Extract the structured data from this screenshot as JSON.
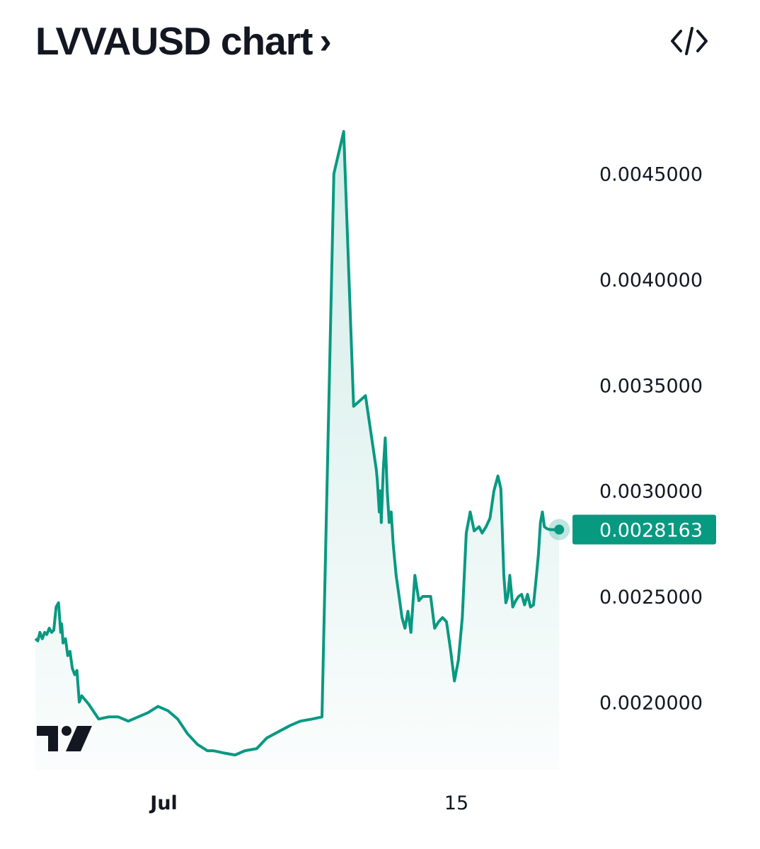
{
  "header": {
    "title": "LVVAUSD chart",
    "chevron": "›",
    "embed_icon": "code-embed-icon"
  },
  "logo": {
    "icon": "tradingview-logo-icon"
  },
  "colors": {
    "line": "#089981",
    "fill_top": "#089981",
    "last_price_bg": "#089981",
    "text": "#131722"
  },
  "chart_data": {
    "type": "area",
    "title": "LVVAUSD chart",
    "xlabel": "",
    "ylabel": "",
    "x_ticks": [
      {
        "label": "Jul",
        "x": 12.8,
        "bold": true
      },
      {
        "label": "15",
        "x": 27.6,
        "bold": false
      }
    ],
    "y_ticks": [
      0.0045,
      0.004,
      0.0035,
      0.003,
      0.0025,
      0.002
    ],
    "y_tick_labels": [
      "0.0045000",
      "0.0040000",
      "0.0035000",
      "0.0030000",
      "0.0025000",
      "0.0020000"
    ],
    "xlim": [
      6.3,
      32.9
    ],
    "ylim": [
      0.00168,
      0.00482
    ],
    "grid": false,
    "legend": "none",
    "last_price": 0.0028163,
    "last_price_label": "0.0028163",
    "x": [
      6.3,
      6.42,
      6.53,
      6.65,
      6.77,
      6.88,
      7.0,
      7.12,
      7.23,
      7.35,
      7.47,
      7.58,
      7.63,
      7.7,
      7.82,
      7.94,
      8.05,
      8.17,
      8.29,
      8.4,
      8.52,
      8.64,
      9.0,
      9.5,
      10.0,
      10.5,
      11.0,
      11.5,
      12.0,
      12.5,
      13.0,
      13.5,
      14.0,
      14.5,
      15.0,
      15.3,
      15.8,
      16.4,
      16.9,
      17.5,
      18.0,
      18.6,
      19.2,
      19.7,
      20.3,
      20.8,
      21.4,
      21.9,
      22.4,
      23.0,
      23.55,
      23.6,
      23.7,
      23.75,
      23.8,
      23.9,
      24.0,
      24.1,
      24.2,
      24.3,
      24.4,
      24.55,
      24.7,
      24.85,
      25.0,
      25.15,
      25.3,
      25.5,
      25.7,
      25.9,
      26.1,
      26.3,
      26.5,
      26.7,
      26.9,
      27.1,
      27.3,
      27.5,
      27.7,
      27.9,
      28.1,
      28.3,
      28.5,
      28.75,
      28.9,
      29.1,
      29.3,
      29.5,
      29.7,
      29.85,
      30.0,
      30.1,
      30.2,
      30.3,
      30.45,
      30.6,
      30.75,
      30.9,
      31.05,
      31.2,
      31.35,
      31.5,
      31.65,
      31.75,
      31.85,
      31.95,
      32.05,
      32.2,
      32.35,
      32.5,
      32.65,
      32.8
    ],
    "y": [
      0.0023,
      0.00229,
      0.00233,
      0.0023,
      0.00233,
      0.00232,
      0.00235,
      0.00233,
      0.00234,
      0.00245,
      0.00247,
      0.00233,
      0.00237,
      0.00228,
      0.0023,
      0.00222,
      0.00224,
      0.00216,
      0.00213,
      0.00215,
      0.002,
      0.00203,
      0.00199,
      0.00192,
      0.00193,
      0.00193,
      0.00191,
      0.00193,
      0.00195,
      0.00198,
      0.00196,
      0.00192,
      0.00185,
      0.0018,
      0.00177,
      0.00177,
      0.00176,
      0.00175,
      0.00177,
      0.00178,
      0.00183,
      0.00186,
      0.00189,
      0.00191,
      0.00192,
      0.00193,
      0.0045,
      0.0047,
      0.0034,
      0.00345,
      0.0031,
      0.00305,
      0.0029,
      0.003,
      0.00285,
      0.0031,
      0.00325,
      0.003,
      0.00285,
      0.0029,
      0.00275,
      0.0026,
      0.0025,
      0.0024,
      0.00235,
      0.00243,
      0.00233,
      0.0026,
      0.00248,
      0.0025,
      0.0025,
      0.0025,
      0.00235,
      0.00238,
      0.0024,
      0.00238,
      0.00225,
      0.0021,
      0.0022,
      0.0024,
      0.0028,
      0.0029,
      0.00281,
      0.00283,
      0.0028,
      0.00283,
      0.00287,
      0.003,
      0.00307,
      0.00301,
      0.0026,
      0.00247,
      0.0025,
      0.0026,
      0.00245,
      0.00248,
      0.0025,
      0.00251,
      0.00246,
      0.00251,
      0.00245,
      0.00246,
      0.0026,
      0.0027,
      0.00285,
      0.0029,
      0.00283,
      0.00282,
      0.0028163,
      0.0028163,
      0.0028163,
      0.0028163
    ]
  }
}
